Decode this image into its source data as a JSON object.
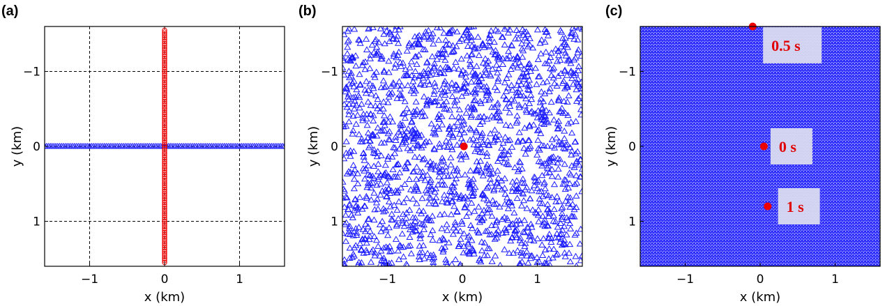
{
  "colors": {
    "receiver": "#1a1aff",
    "source": "#ee0000",
    "grid": "#000000",
    "annotation_box": "#dadbf0"
  },
  "chart_data": [
    {
      "type": "scatter",
      "panel_label": "(a)",
      "xlabel": "x (km)",
      "ylabel": "y (km)",
      "xlim": [
        -1.6,
        1.6
      ],
      "ylim": [
        -1.6,
        1.6
      ],
      "y_reversed": true,
      "xticks": [
        -1,
        0,
        1
      ],
      "yticks": [
        -1,
        0,
        1
      ],
      "xtick_labels": [
        "−1",
        "0",
        "1"
      ],
      "ytick_labels": [
        "−1",
        "0",
        "1"
      ],
      "grid": true,
      "series": [
        {
          "marker": "triangle",
          "color": "receiver",
          "layout": "line-x",
          "y": 0,
          "x_from": -1.6,
          "x_to": 1.6,
          "step": 0.025
        },
        {
          "marker": "circle-open",
          "color": "source",
          "layout": "line-y",
          "x": 0,
          "y_from": -1.55,
          "y_to": 1.55,
          "step": 0.025
        }
      ]
    },
    {
      "type": "scatter",
      "panel_label": "(b)",
      "xlabel": "x (km)",
      "ylabel": "y (km)",
      "xlim": [
        -1.6,
        1.6
      ],
      "ylim": [
        -1.6,
        1.6
      ],
      "y_reversed": true,
      "xticks": [
        -1,
        0,
        1
      ],
      "yticks": [
        -1,
        0,
        1
      ],
      "xtick_labels": [
        "−1",
        "0",
        "1"
      ],
      "ytick_labels": [
        "−1",
        "0",
        "1"
      ],
      "grid": false,
      "series": [
        {
          "marker": "triangle",
          "color": "receiver",
          "layout": "random",
          "count": 1800,
          "seed": 7
        },
        {
          "marker": "dot",
          "color": "source",
          "layout": "points",
          "points": [
            {
              "x": 0.02,
              "y": 0.0
            }
          ]
        }
      ]
    },
    {
      "type": "scatter",
      "panel_label": "(c)",
      "xlabel": "x (km)",
      "ylabel": "y (km)",
      "xlim": [
        -1.6,
        1.6
      ],
      "ylim": [
        -1.6,
        1.6
      ],
      "y_reversed": true,
      "xticks": [
        -1,
        0,
        1
      ],
      "yticks": [
        -1,
        0,
        1
      ],
      "xtick_labels": [
        "−1",
        "0",
        "1"
      ],
      "ytick_labels": [
        "−1",
        "0",
        "1"
      ],
      "grid": false,
      "series": [
        {
          "marker": "triangle",
          "color": "receiver",
          "layout": "grid",
          "step": 0.04
        },
        {
          "marker": "dot",
          "color": "source",
          "layout": "points",
          "points": [
            {
              "x": -0.1,
              "y": -1.6
            },
            {
              "x": 0.05,
              "y": 0.0
            },
            {
              "x": 0.1,
              "y": 0.8
            }
          ]
        }
      ],
      "annotations": [
        {
          "text": "0.5 s",
          "x": 0.15,
          "y": -1.35
        },
        {
          "text": "0 s",
          "x": 0.25,
          "y": 0.0
        },
        {
          "text": "1 s",
          "x": 0.35,
          "y": 0.8
        }
      ]
    }
  ]
}
